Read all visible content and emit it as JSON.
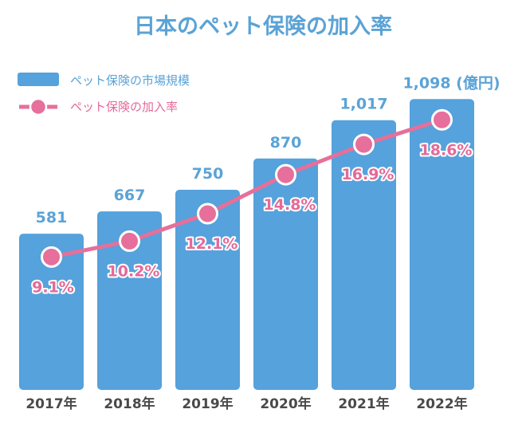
{
  "colors": {
    "bar": "#55a2dc",
    "line": "#e66f9b",
    "title": "#5ba3d6",
    "category": "#4a4a4a"
  },
  "chart_data": {
    "type": "bar",
    "title": "日本のペット保険の加入率",
    "categories": [
      "2017年",
      "2018年",
      "2019年",
      "2020年",
      "2021年",
      "2022年"
    ],
    "series": [
      {
        "name": "ペット保険の市場規模",
        "type": "bar",
        "values": [
          581,
          667,
          750,
          870,
          1017,
          1098
        ],
        "labels": [
          "581",
          "667",
          "750",
          "870",
          "1,017",
          "1,098 (億円)"
        ]
      },
      {
        "name": "ペット保険の加入率",
        "type": "line",
        "values": [
          9.1,
          10.2,
          12.1,
          14.8,
          16.9,
          18.6
        ],
        "labels": [
          "9.1%",
          "10.2%",
          "12.1%",
          "14.8%",
          "16.9%",
          "18.6%"
        ]
      }
    ],
    "legend": "top-left",
    "grid": false
  }
}
